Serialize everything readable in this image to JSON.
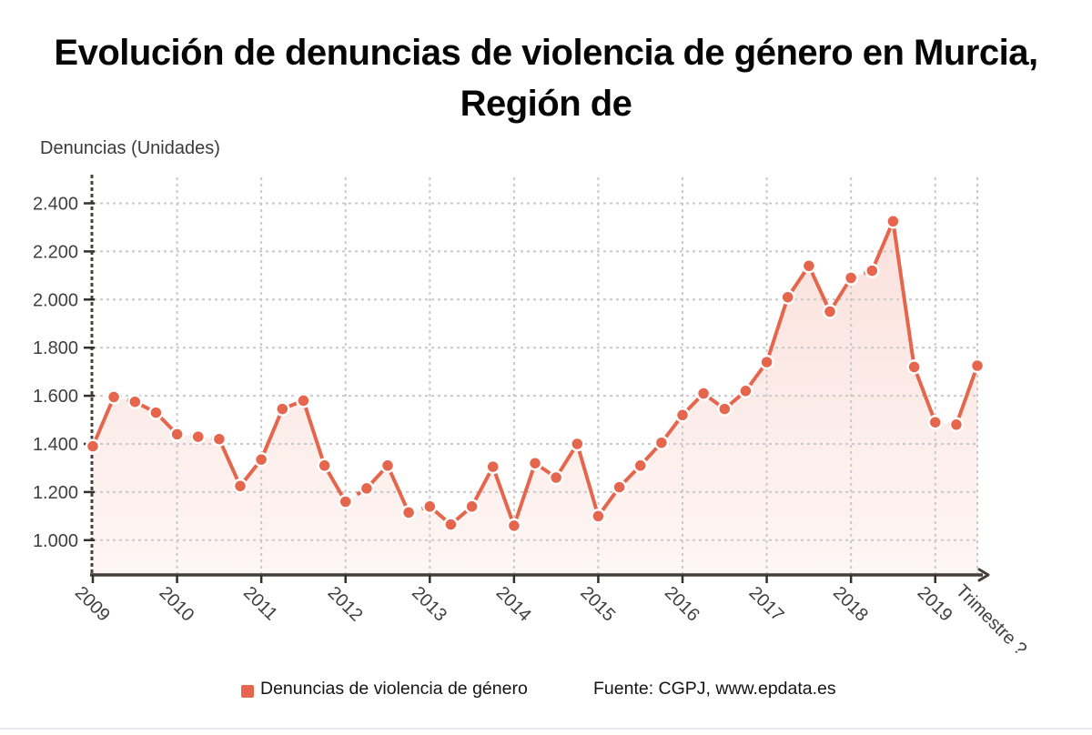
{
  "title": {
    "line1": "Evolución de denuncias de violencia de género en Murcia,",
    "line2": "Región de"
  },
  "axis_unit_label": "Denuncias (Unidades)",
  "legend": {
    "series_label": "Denuncias de violencia de género",
    "source_label": "Fuente: CGPJ, www.epdata.es"
  },
  "chart_data": {
    "type": "line",
    "title": "Evolución de denuncias de violencia de género en Murcia, Región de",
    "ylabel": "Denuncias (Unidades)",
    "x_axis_title": "Trimestre ?",
    "grid": true,
    "legend_position": "bottom",
    "ylim": [
      860,
      2500
    ],
    "y_ticks": [
      {
        "value": 1000,
        "label": "1.000"
      },
      {
        "value": 1200,
        "label": "1.200"
      },
      {
        "value": 1400,
        "label": "1.400"
      },
      {
        "value": 1600,
        "label": "1.600"
      },
      {
        "value": 1800,
        "label": "1.800"
      },
      {
        "value": 2000,
        "label": "2.000"
      },
      {
        "value": 2200,
        "label": "2.200"
      },
      {
        "value": 2400,
        "label": "2.400"
      }
    ],
    "x_year_ticks": [
      "2009",
      "2010",
      "2011",
      "2012",
      "2013",
      "2014",
      "2015",
      "2016",
      "2017",
      "2018",
      "2019"
    ],
    "series": [
      {
        "name": "Denuncias de violencia de género",
        "quarters": [
          "2009T1",
          "2009T2",
          "2009T3",
          "2009T4",
          "2010T1",
          "2010T2",
          "2010T3",
          "2010T4",
          "2011T1",
          "2011T2",
          "2011T3",
          "2011T4",
          "2012T1",
          "2012T2",
          "2012T3",
          "2012T4",
          "2013T1",
          "2013T2",
          "2013T3",
          "2013T4",
          "2014T1",
          "2014T2",
          "2014T3",
          "2014T4",
          "2015T1",
          "2015T2",
          "2015T3",
          "2015T4",
          "2016T1",
          "2016T2",
          "2016T3",
          "2016T4",
          "2017T1",
          "2017T2",
          "2017T3",
          "2017T4",
          "2018T1",
          "2018T2",
          "2018T3",
          "2018T4",
          "2019T1",
          "2019T2",
          "2019T3"
        ],
        "values": [
          1390,
          1595,
          1575,
          1530,
          1440,
          1430,
          1420,
          1225,
          1335,
          1545,
          1580,
          1310,
          1160,
          1215,
          1310,
          1115,
          1140,
          1065,
          1140,
          1305,
          1060,
          1320,
          1260,
          1400,
          1100,
          1220,
          1310,
          1405,
          1520,
          1610,
          1545,
          1620,
          1740,
          2010,
          2140,
          1950,
          2090,
          2120,
          2325,
          1720,
          1490,
          1480,
          1725
        ],
        "dashed_segment_start_indices": [
          1,
          4,
          5,
          12,
          15,
          36,
          40
        ]
      }
    ],
    "colors": {
      "line": "#e5664c",
      "marker_fill": "#e5664c",
      "marker_border": "#ffffff",
      "area_top": "rgba(233,105,80,0.22)",
      "area_bottom": "rgba(233,105,80,0.06)",
      "grid": "#c9c9c9",
      "axis": "#453e38",
      "tick_text": "#3f3f3f",
      "title_text": "#060606"
    }
  }
}
